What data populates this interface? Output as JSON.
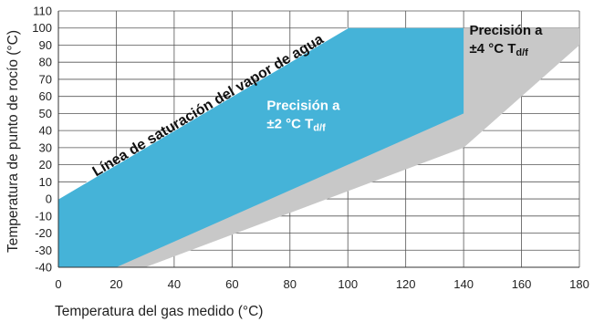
{
  "chart_data": {
    "type": "area",
    "xlabel": "Temperatura del gas medido (°C)",
    "ylabel": "Temperatura de punto de rocío (°C)",
    "xlim": [
      0,
      180
    ],
    "ylim": [
      -40,
      110
    ],
    "x_ticks": [
      0,
      20,
      40,
      60,
      80,
      100,
      120,
      140,
      160,
      180
    ],
    "y_ticks": [
      -40,
      -30,
      -20,
      -10,
      0,
      10,
      20,
      30,
      40,
      50,
      60,
      70,
      80,
      90,
      100,
      110
    ],
    "grid": true,
    "series": [
      {
        "name": "Precisión a ±4 °C Td/f",
        "color": "#c8c8c8",
        "polygon": [
          [
            0,
            0
          ],
          [
            100,
            100
          ],
          [
            180,
            100
          ],
          [
            180,
            90
          ],
          [
            140,
            30
          ],
          [
            30,
            -40
          ],
          [
            0,
            -40
          ]
        ]
      },
      {
        "name": "Precisión a ±2 °C Td/f",
        "color": "#45b3d8",
        "polygon": [
          [
            0,
            0
          ],
          [
            100,
            100
          ],
          [
            140,
            100
          ],
          [
            140,
            50
          ],
          [
            20,
            -40
          ],
          [
            0,
            -40
          ]
        ]
      }
    ],
    "saturation_line": {
      "label": "Línea de saturación del vapor de agua",
      "points": [
        [
          0,
          0
        ],
        [
          100,
          100
        ]
      ]
    },
    "annotations": [
      {
        "id": "inner",
        "title": "Precisión a",
        "value": "±2 °C T",
        "subscript": "d/f",
        "color": "#ffffff",
        "x": 72,
        "y": 52
      },
      {
        "id": "outer",
        "title": "Precisión a",
        "value": "±4 °C T",
        "subscript": "d/f",
        "color": "#111111",
        "x": 142,
        "y": 96
      }
    ]
  }
}
